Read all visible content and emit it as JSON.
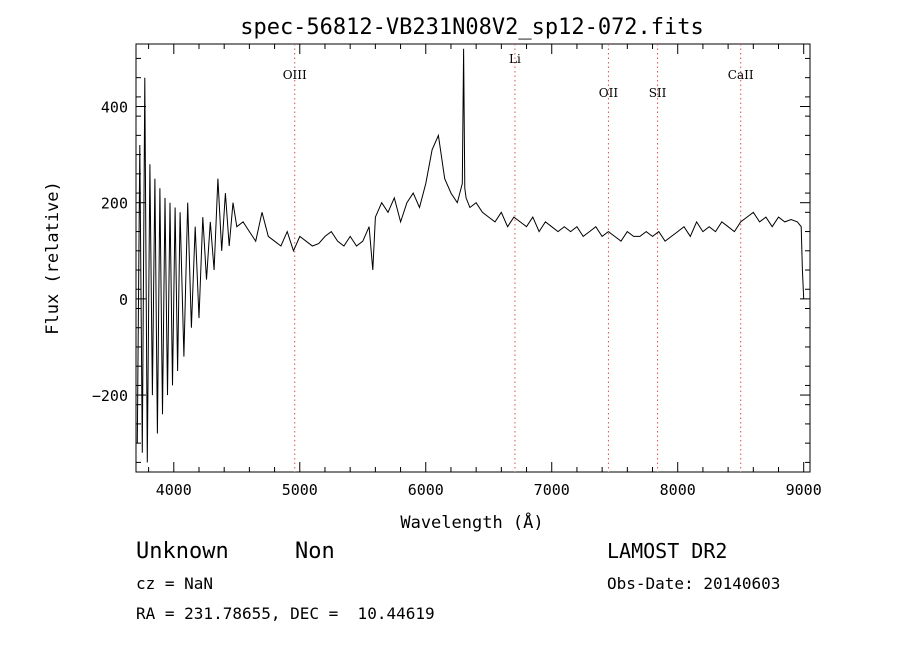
{
  "chart_data": {
    "type": "line",
    "title": "spec-56812-VB231N08V2_sp12-072.fits",
    "xlabel": "Wavelength (Å)",
    "ylabel": "Flux (relative)",
    "xlim": [
      3700,
      9050
    ],
    "ylim": [
      -360,
      530
    ],
    "xticks": [
      4000,
      5000,
      6000,
      7000,
      8000,
      9000
    ],
    "yticks": [
      -200,
      0,
      200,
      400
    ],
    "x_tick_labels": [
      "4000",
      "5000",
      "6000",
      "7000",
      "8000",
      "9000"
    ],
    "y_tick_labels": [
      "−200",
      "0",
      "200",
      "400"
    ],
    "grid": false,
    "series": [
      {
        "color": "#000000",
        "x": [
          3710,
          3730,
          3750,
          3770,
          3790,
          3810,
          3830,
          3850,
          3870,
          3890,
          3910,
          3930,
          3950,
          3970,
          3990,
          4010,
          4030,
          4050,
          4080,
          4110,
          4140,
          4170,
          4200,
          4230,
          4260,
          4290,
          4320,
          4350,
          4380,
          4410,
          4440,
          4470,
          4500,
          4550,
          4600,
          4650,
          4700,
          4750,
          4800,
          4850,
          4900,
          4950,
          5000,
          5050,
          5100,
          5150,
          5200,
          5250,
          5300,
          5350,
          5400,
          5450,
          5500,
          5550,
          5580,
          5600,
          5650,
          5700,
          5750,
          5800,
          5850,
          5900,
          5950,
          6000,
          6050,
          6100,
          6150,
          6200,
          6250,
          6290,
          6300,
          6310,
          6320,
          6350,
          6400,
          6450,
          6500,
          6550,
          6600,
          6650,
          6700,
          6750,
          6800,
          6850,
          6900,
          6950,
          7000,
          7050,
          7100,
          7150,
          7200,
          7250,
          7300,
          7350,
          7400,
          7450,
          7500,
          7550,
          7600,
          7650,
          7700,
          7750,
          7800,
          7850,
          7900,
          7950,
          8000,
          8050,
          8100,
          8150,
          8200,
          8250,
          8300,
          8350,
          8400,
          8450,
          8500,
          8550,
          8600,
          8650,
          8700,
          8750,
          8800,
          8850,
          8900,
          8950,
          8980,
          8990,
          9000
        ],
        "y": [
          -300,
          320,
          -320,
          460,
          -340,
          280,
          -200,
          250,
          -280,
          230,
          -240,
          210,
          -200,
          200,
          -180,
          190,
          -150,
          180,
          -120,
          200,
          -60,
          150,
          -40,
          170,
          40,
          160,
          60,
          250,
          100,
          220,
          110,
          200,
          150,
          160,
          140,
          120,
          180,
          130,
          120,
          110,
          140,
          100,
          130,
          120,
          110,
          115,
          130,
          140,
          120,
          110,
          130,
          110,
          120,
          150,
          60,
          170,
          200,
          180,
          210,
          160,
          200,
          220,
          190,
          240,
          310,
          340,
          250,
          220,
          200,
          240,
          520,
          230,
          210,
          190,
          200,
          180,
          170,
          160,
          180,
          150,
          170,
          160,
          150,
          170,
          140,
          160,
          150,
          140,
          150,
          140,
          150,
          130,
          140,
          150,
          130,
          140,
          130,
          120,
          140,
          130,
          130,
          140,
          130,
          140,
          120,
          130,
          140,
          150,
          130,
          160,
          140,
          150,
          140,
          160,
          150,
          140,
          160,
          170,
          180,
          160,
          170,
          150,
          170,
          160,
          165,
          160,
          150,
          60,
          0
        ]
      }
    ],
    "annotations": [
      {
        "label": "OIII",
        "x": 4960,
        "color": "#e05050"
      },
      {
        "label": "Li",
        "x": 6708,
        "color": "#e05050"
      },
      {
        "label": "OII",
        "x": 7450,
        "color": "#e05050"
      },
      {
        "label": "SII",
        "x": 7840,
        "color": "#e05050"
      },
      {
        "label": "CaII",
        "x": 8500,
        "color": "#e05050"
      }
    ]
  },
  "info": {
    "class_label": "Unknown",
    "subclass_label": "Non",
    "survey": "LAMOST DR2",
    "cz": "cz = NaN",
    "obs_date": "Obs-Date: 20140603",
    "coords": "RA = 231.78655, DEC =  10.44619"
  }
}
